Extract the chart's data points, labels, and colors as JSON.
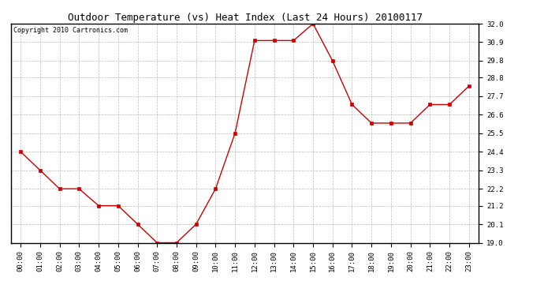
{
  "title": "Outdoor Temperature (vs) Heat Index (Last 24 Hours) 20100117",
  "copyright": "Copyright 2010 Cartronics.com",
  "x_labels": [
    "00:00",
    "01:00",
    "02:00",
    "03:00",
    "04:00",
    "05:00",
    "06:00",
    "07:00",
    "08:00",
    "09:00",
    "10:00",
    "11:00",
    "12:00",
    "13:00",
    "14:00",
    "15:00",
    "16:00",
    "17:00",
    "18:00",
    "19:00",
    "20:00",
    "21:00",
    "22:00",
    "23:00"
  ],
  "y_values": [
    24.4,
    23.3,
    22.2,
    22.2,
    21.2,
    21.2,
    20.1,
    19.0,
    19.0,
    20.1,
    22.2,
    25.5,
    31.0,
    31.0,
    31.0,
    32.0,
    29.8,
    27.2,
    26.1,
    26.1,
    26.1,
    27.2,
    27.2,
    28.3
  ],
  "line_color": "#cc0000",
  "marker": "s",
  "marker_size": 2.5,
  "marker_color": "#cc0000",
  "bg_color": "#ffffff",
  "grid_color": "#aaaaaa",
  "ylim_min": 19.0,
  "ylim_max": 32.0,
  "yticks": [
    19.0,
    20.1,
    21.2,
    22.2,
    23.3,
    24.4,
    25.5,
    26.6,
    27.7,
    28.8,
    29.8,
    30.9,
    32.0
  ],
  "title_fontsize": 9,
  "copyright_fontsize": 6,
  "tick_fontsize": 6.5,
  "border_color": "#000000"
}
